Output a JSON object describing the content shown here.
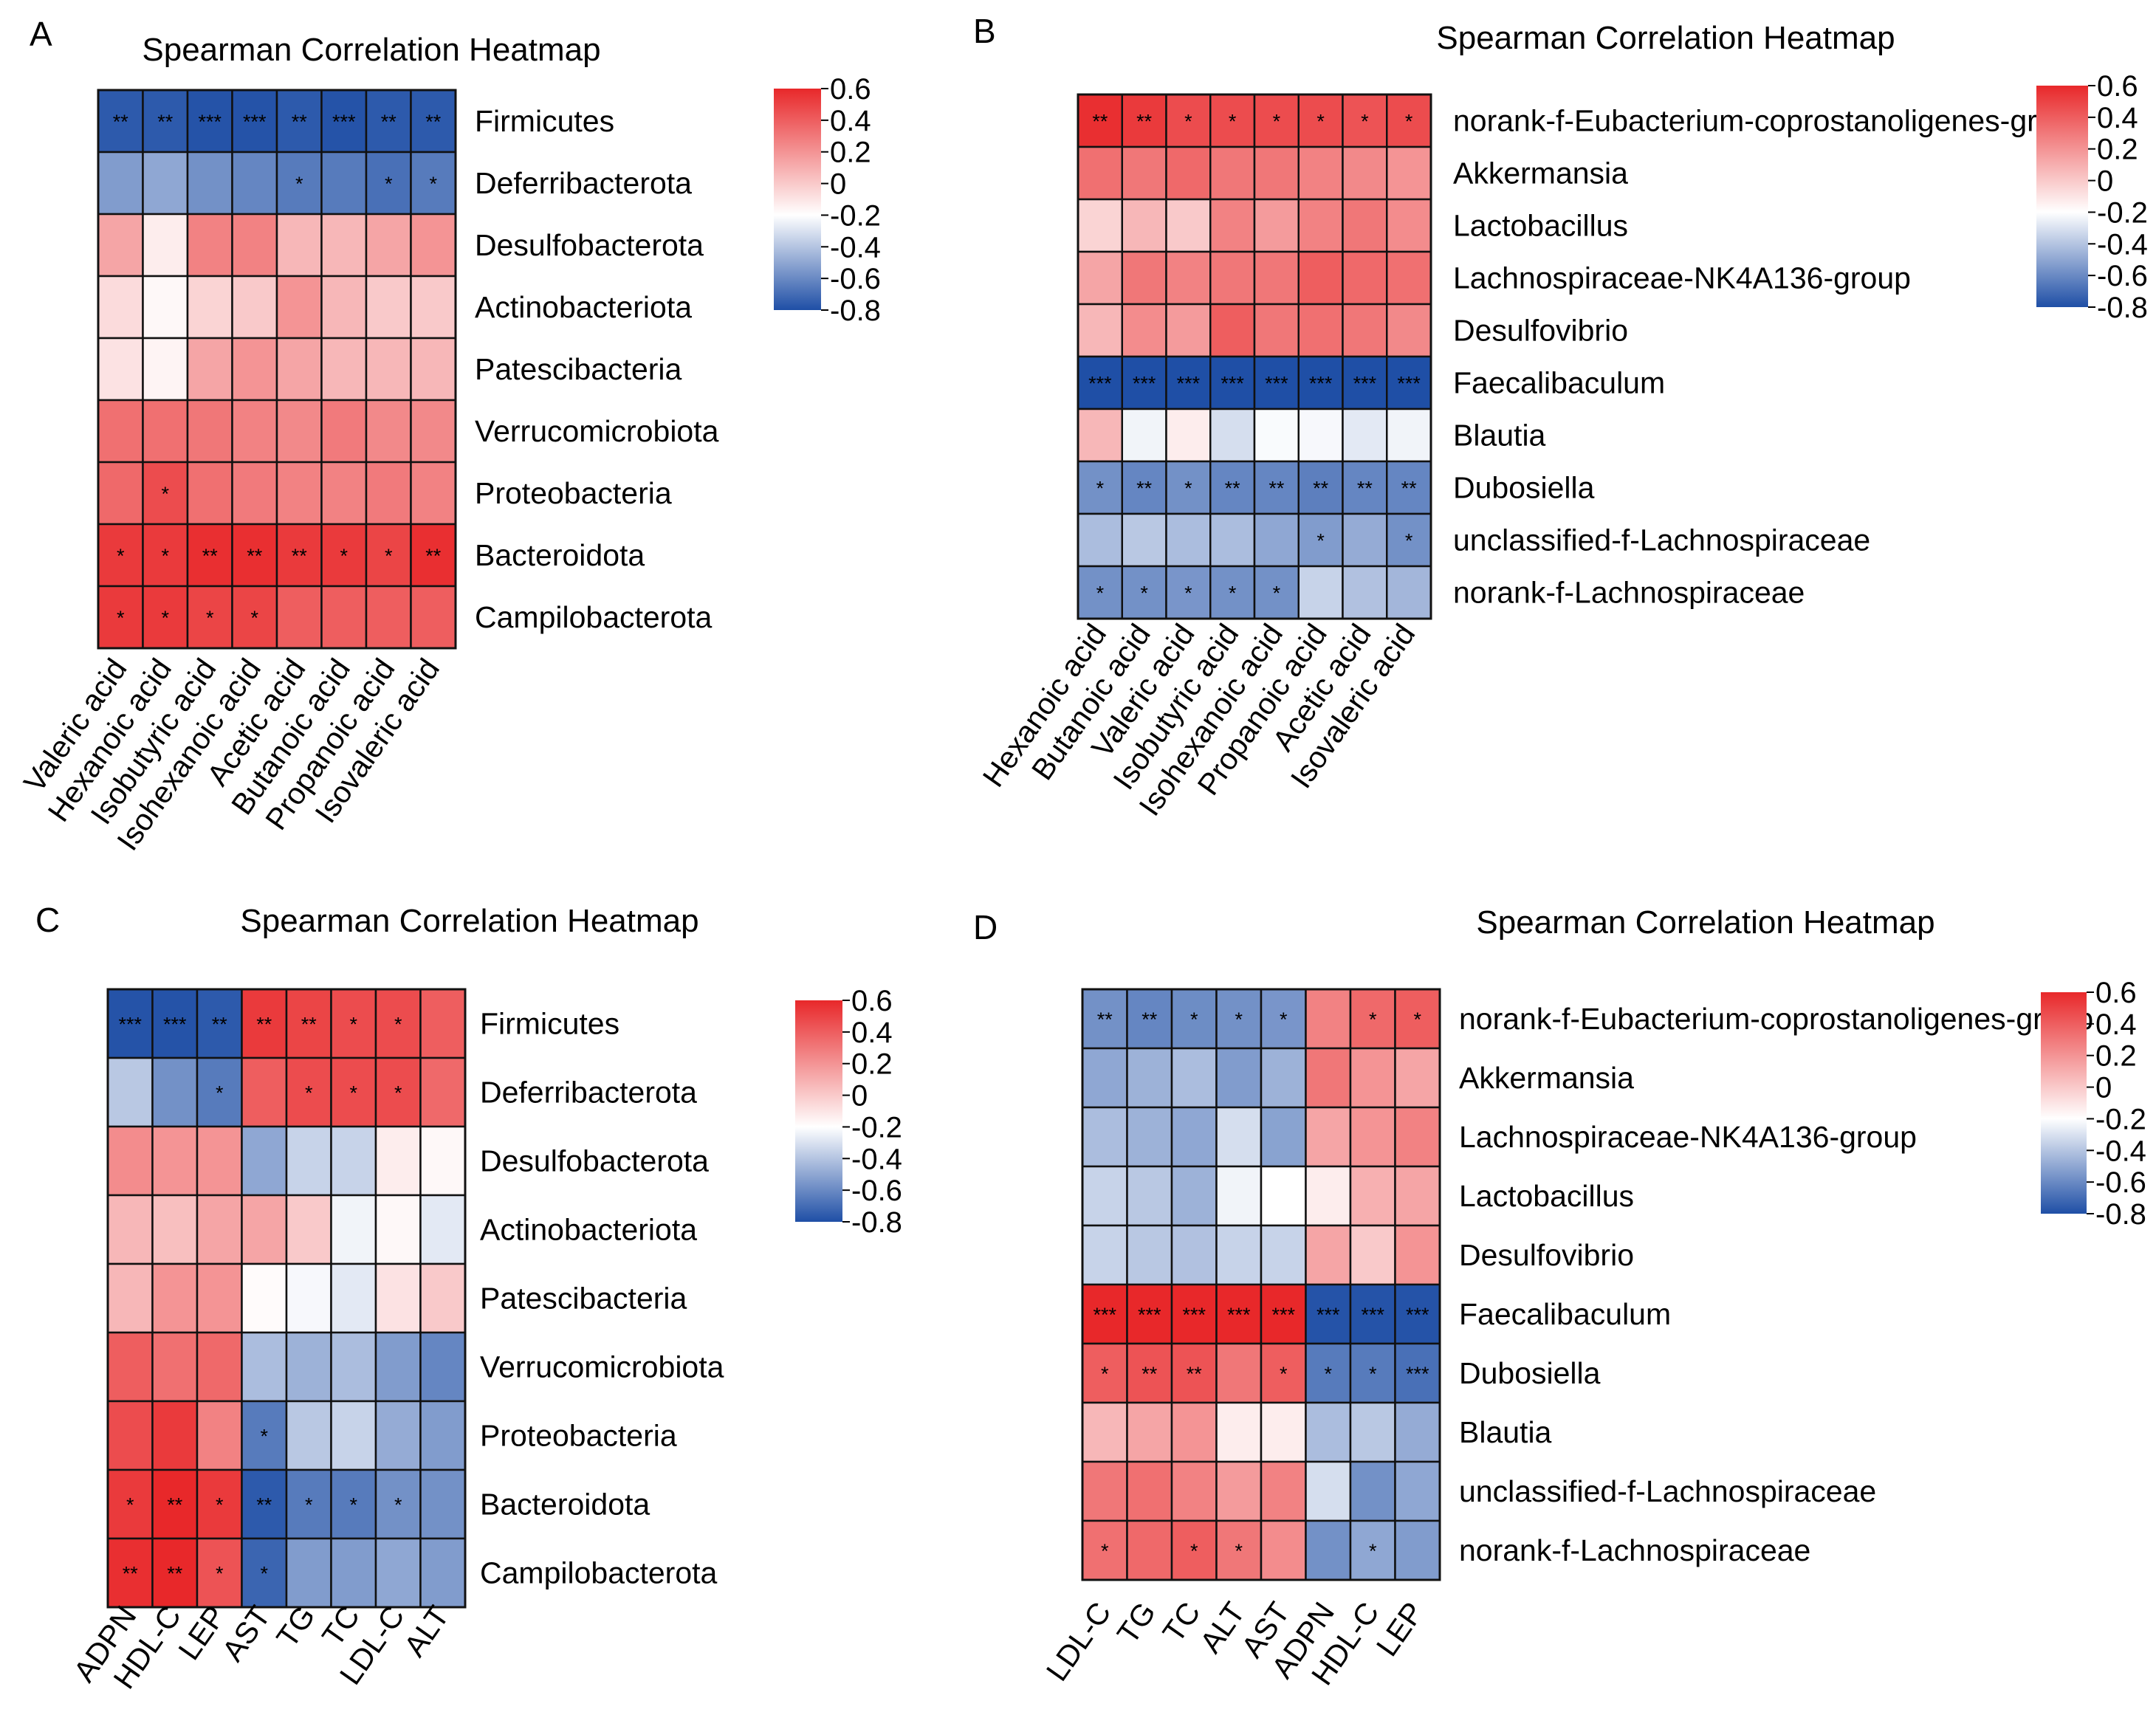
{
  "colors": {
    "neg": "#1f4fa6",
    "zero": "#ffffff",
    "pos": "#e8282a",
    "grid": "#111111"
  },
  "chart_data": [
    {
      "type": "heatmap",
      "panel": "A",
      "title": "Spearman Correlation Heatmap",
      "rows": [
        "Firmicutes",
        "Deferribacterota",
        "Desulfobacterota",
        "Actinobacteriota",
        "Patescibacteria",
        "Verrucomicrobiota",
        "Proteobacteria",
        "Bacteroidota",
        "Campilobacterota"
      ],
      "cols": [
        "Valeric acid",
        "Hexanoic acid",
        "Isobutyric acid",
        "Isohexanoic acid",
        "Acetic acid",
        "Butanoic acid",
        "Propanoic acid",
        "Isovaleric acid"
      ],
      "values": [
        [
          -0.75,
          -0.75,
          -0.78,
          -0.78,
          -0.75,
          -0.78,
          -0.75,
          -0.75
        ],
        [
          -0.45,
          -0.4,
          -0.5,
          -0.55,
          -0.6,
          -0.6,
          -0.65,
          -0.6
        ],
        [
          0.25,
          0.05,
          0.35,
          0.35,
          0.2,
          0.2,
          0.25,
          0.3
        ],
        [
          0.1,
          0.02,
          0.12,
          0.15,
          0.3,
          0.2,
          0.15,
          0.15
        ],
        [
          0.08,
          0.03,
          0.25,
          0.3,
          0.25,
          0.2,
          0.2,
          0.2
        ],
        [
          0.4,
          0.4,
          0.38,
          0.35,
          0.33,
          0.37,
          0.33,
          0.33
        ],
        [
          0.42,
          0.5,
          0.4,
          0.37,
          0.35,
          0.35,
          0.37,
          0.35
        ],
        [
          0.55,
          0.55,
          0.58,
          0.58,
          0.55,
          0.55,
          0.52,
          0.58
        ],
        [
          0.55,
          0.55,
          0.52,
          0.52,
          0.45,
          0.45,
          0.45,
          0.45
        ]
      ],
      "stars": [
        [
          "**",
          "**",
          "***",
          "***",
          "**",
          "***",
          "**",
          "**"
        ],
        [
          "",
          "",
          "",
          "",
          "*",
          "",
          "*",
          "*"
        ],
        [
          "",
          "",
          "",
          "",
          "",
          "",
          "",
          ""
        ],
        [
          "",
          "",
          "",
          "",
          "",
          "",
          "",
          ""
        ],
        [
          "",
          "",
          "",
          "",
          "",
          "",
          "",
          ""
        ],
        [
          "",
          "",
          "",
          "",
          "",
          "",
          "",
          ""
        ],
        [
          "",
          "*",
          "",
          "",
          "",
          "",
          "",
          ""
        ],
        [
          "*",
          "*",
          "**",
          "**",
          "**",
          "*",
          "*",
          "**"
        ],
        [
          "*",
          "*",
          "*",
          "*",
          "",
          "",
          "",
          ""
        ]
      ],
      "legend": {
        "ticks": [
          "0.6",
          "0.4",
          "0.2",
          "0",
          "-0.2",
          "-0.4",
          "-0.6",
          "-0.8"
        ],
        "range": [
          -0.8,
          0.6
        ]
      }
    },
    {
      "type": "heatmap",
      "panel": "B",
      "title": "Spearman Correlation Heatmap",
      "rows": [
        "norank-f-Eubacterium-coprostanoligenes-group",
        "Akkermansia",
        "Lactobacillus",
        "Lachnospiraceae-NK4A136-group",
        "Desulfovibrio",
        "Faecalibaculum",
        "Blautia",
        "Dubosiella",
        "unclassified-f-Lachnospiraceae",
        "norank-f-Lachnospiraceae"
      ],
      "cols": [
        "Hexanoic acid",
        "Butanoic acid",
        "Valeric acid",
        "Isobutyric acid",
        "Isohexanoic acid",
        "Propanoic acid",
        "Acetic acid",
        "Isovaleric acid"
      ],
      "values": [
        [
          0.58,
          0.55,
          0.5,
          0.5,
          0.5,
          0.5,
          0.48,
          0.5
        ],
        [
          0.4,
          0.38,
          0.42,
          0.38,
          0.38,
          0.35,
          0.33,
          0.3
        ],
        [
          0.12,
          0.2,
          0.15,
          0.35,
          0.28,
          0.35,
          0.38,
          0.32
        ],
        [
          0.25,
          0.38,
          0.35,
          0.38,
          0.38,
          0.45,
          0.42,
          0.4
        ],
        [
          0.2,
          0.32,
          0.28,
          0.45,
          0.38,
          0.4,
          0.38,
          0.33
        ],
        [
          -0.8,
          -0.8,
          -0.8,
          -0.8,
          -0.8,
          -0.8,
          -0.8,
          -0.8
        ],
        [
          0.2,
          -0.05,
          0.05,
          -0.15,
          -0.02,
          -0.03,
          -0.1,
          -0.05
        ],
        [
          -0.5,
          -0.55,
          -0.5,
          -0.55,
          -0.55,
          -0.58,
          -0.55,
          -0.55
        ],
        [
          -0.3,
          -0.25,
          -0.3,
          -0.3,
          -0.4,
          -0.45,
          -0.38,
          -0.5
        ],
        [
          -0.5,
          -0.5,
          -0.48,
          -0.5,
          -0.5,
          -0.2,
          -0.28,
          -0.33
        ]
      ],
      "stars": [
        [
          "**",
          "**",
          "*",
          "*",
          "*",
          "*",
          "*",
          "*"
        ],
        [
          "",
          "",
          "",
          "",
          "",
          "",
          "",
          ""
        ],
        [
          "",
          "",
          "",
          "",
          "",
          "",
          "",
          ""
        ],
        [
          "",
          "",
          "",
          "",
          "",
          "",
          "",
          ""
        ],
        [
          "",
          "",
          "",
          "",
          "",
          "",
          "",
          ""
        ],
        [
          "***",
          "***",
          "***",
          "***",
          "***",
          "***",
          "***",
          "***"
        ],
        [
          "",
          "",
          "",
          "",
          "",
          "",
          "",
          ""
        ],
        [
          "*",
          "**",
          "*",
          "**",
          "**",
          "**",
          "**",
          "**"
        ],
        [
          "",
          "",
          "",
          "",
          "",
          "*",
          "",
          "*"
        ],
        [
          "*",
          "*",
          "*",
          "*",
          "*",
          "",
          "",
          ""
        ]
      ],
      "legend": {
        "ticks": [
          "0.6",
          "0.4",
          "0.2",
          "0",
          "-0.2",
          "-0.4",
          "-0.6",
          "-0.8"
        ],
        "range": [
          -0.8,
          0.6
        ]
      }
    },
    {
      "type": "heatmap",
      "panel": "C",
      "title": "Spearman Correlation Heatmap",
      "rows": [
        "Firmicutes",
        "Deferribacterota",
        "Desulfobacterota",
        "Actinobacteriota",
        "Patescibacteria",
        "Verrucomicrobiota",
        "Proteobacteria",
        "Bacteroidota",
        "Campilobacterota"
      ],
      "cols": [
        "ADPN",
        "HDL-C",
        "LEP",
        "AST",
        "TG",
        "TC",
        "LDL-C",
        "ALT"
      ],
      "values": [
        [
          -0.78,
          -0.78,
          -0.75,
          0.55,
          0.52,
          0.5,
          0.5,
          0.45
        ],
        [
          -0.25,
          -0.5,
          -0.6,
          0.45,
          0.5,
          0.5,
          0.5,
          0.42
        ],
        [
          0.32,
          0.3,
          0.3,
          -0.4,
          -0.2,
          -0.2,
          0.05,
          0.02
        ],
        [
          0.2,
          0.18,
          0.25,
          0.25,
          0.15,
          -0.05,
          0.02,
          -0.1
        ],
        [
          0.2,
          0.3,
          0.3,
          0.01,
          -0.03,
          -0.1,
          0.08,
          0.15
        ],
        [
          0.45,
          0.4,
          0.42,
          -0.3,
          -0.35,
          -0.3,
          -0.45,
          -0.55
        ],
        [
          0.5,
          0.55,
          0.35,
          -0.6,
          -0.25,
          -0.2,
          -0.38,
          -0.45
        ],
        [
          0.55,
          0.6,
          0.55,
          -0.75,
          -0.6,
          -0.6,
          -0.5,
          -0.5
        ],
        [
          0.58,
          0.6,
          0.48,
          -0.7,
          -0.45,
          -0.45,
          -0.4,
          -0.45
        ]
      ],
      "stars": [
        [
          "***",
          "***",
          "**",
          "**",
          "**",
          "*",
          "*",
          ""
        ],
        [
          "",
          "",
          "*",
          "",
          "*",
          "*",
          "*",
          ""
        ],
        [
          "",
          "",
          "",
          "",
          "",
          "",
          "",
          ""
        ],
        [
          "",
          "",
          "",
          "",
          "",
          "",
          "",
          ""
        ],
        [
          "",
          "",
          "",
          "",
          "",
          "",
          "",
          ""
        ],
        [
          "",
          "",
          "",
          "",
          "",
          "",
          "",
          ""
        ],
        [
          "",
          "",
          "",
          "*",
          "",
          "",
          "",
          ""
        ],
        [
          "*",
          "**",
          "*",
          "**",
          "*",
          "*",
          "*",
          ""
        ],
        [
          "**",
          "**",
          "*",
          "*",
          "",
          "",
          "",
          ""
        ]
      ],
      "legend": {
        "ticks": [
          "0.6",
          "0.4",
          "0.2",
          "0",
          "-0.2",
          "-0.4",
          "-0.6",
          "-0.8"
        ],
        "range": [
          -0.8,
          0.6
        ]
      }
    },
    {
      "type": "heatmap",
      "panel": "D",
      "title": "Spearman Correlation Heatmap",
      "rows": [
        "norank-f-Eubacterium-coprostanoligenes-group",
        "Akkermansia",
        "Lachnospiraceae-NK4A136-group",
        "Lactobacillus",
        "Desulfovibrio",
        "Faecalibaculum",
        "Dubosiella",
        "Blautia",
        "unclassified-f-Lachnospiraceae",
        "norank-f-Lachnospiraceae"
      ],
      "cols": [
        "LDL-C",
        "TG",
        "TC",
        "ALT",
        "AST",
        "ADPN",
        "HDL-C",
        "LEP"
      ],
      "values": [
        [
          -0.5,
          -0.55,
          -0.52,
          -0.5,
          -0.48,
          0.35,
          0.42,
          0.45
        ],
        [
          -0.4,
          -0.35,
          -0.3,
          -0.45,
          -0.35,
          0.38,
          0.3,
          0.25
        ],
        [
          -0.3,
          -0.35,
          -0.4,
          -0.15,
          -0.42,
          0.25,
          0.3,
          0.35
        ],
        [
          -0.2,
          -0.25,
          -0.35,
          -0.05,
          0.0,
          0.05,
          0.22,
          0.25
        ],
        [
          -0.2,
          -0.25,
          -0.28,
          -0.2,
          -0.2,
          0.25,
          0.15,
          0.3
        ],
        [
          0.6,
          0.6,
          0.6,
          0.6,
          0.6,
          -0.78,
          -0.78,
          -0.78
        ],
        [
          0.45,
          0.48,
          0.48,
          0.38,
          0.45,
          -0.6,
          -0.6,
          -0.65
        ],
        [
          0.2,
          0.25,
          0.3,
          0.05,
          0.05,
          -0.3,
          -0.25,
          -0.38
        ],
        [
          0.38,
          0.4,
          0.35,
          0.28,
          0.35,
          -0.15,
          -0.5,
          -0.4
        ],
        [
          0.4,
          0.42,
          0.45,
          0.38,
          0.32,
          -0.5,
          -0.4,
          -0.45
        ]
      ],
      "stars": [
        [
          "**",
          "**",
          "*",
          "*",
          "*",
          "",
          "*",
          "*"
        ],
        [
          "",
          "",
          "",
          "",
          "",
          "",
          "",
          ""
        ],
        [
          "",
          "",
          "",
          "",
          "",
          "",
          "",
          ""
        ],
        [
          "",
          "",
          "",
          "",
          "",
          "",
          "",
          ""
        ],
        [
          "",
          "",
          "",
          "",
          "",
          "",
          "",
          ""
        ],
        [
          "***",
          "***",
          "***",
          "***",
          "***",
          "***",
          "***",
          "***"
        ],
        [
          "*",
          "**",
          "**",
          "",
          "*",
          "*",
          "*",
          "***"
        ],
        [
          "",
          "",
          "",
          "",
          "",
          "",
          "",
          ""
        ],
        [
          "",
          "",
          "",
          "",
          "",
          "",
          "",
          ""
        ],
        [
          "*",
          "",
          "*",
          "*",
          "",
          "",
          "*",
          ""
        ]
      ],
      "legend": {
        "ticks": [
          "0.6",
          "0.4",
          "0.2",
          "0",
          "-0.2",
          "-0.4",
          "-0.6",
          "-0.8"
        ],
        "range": [
          -0.8,
          0.6
        ]
      }
    }
  ]
}
